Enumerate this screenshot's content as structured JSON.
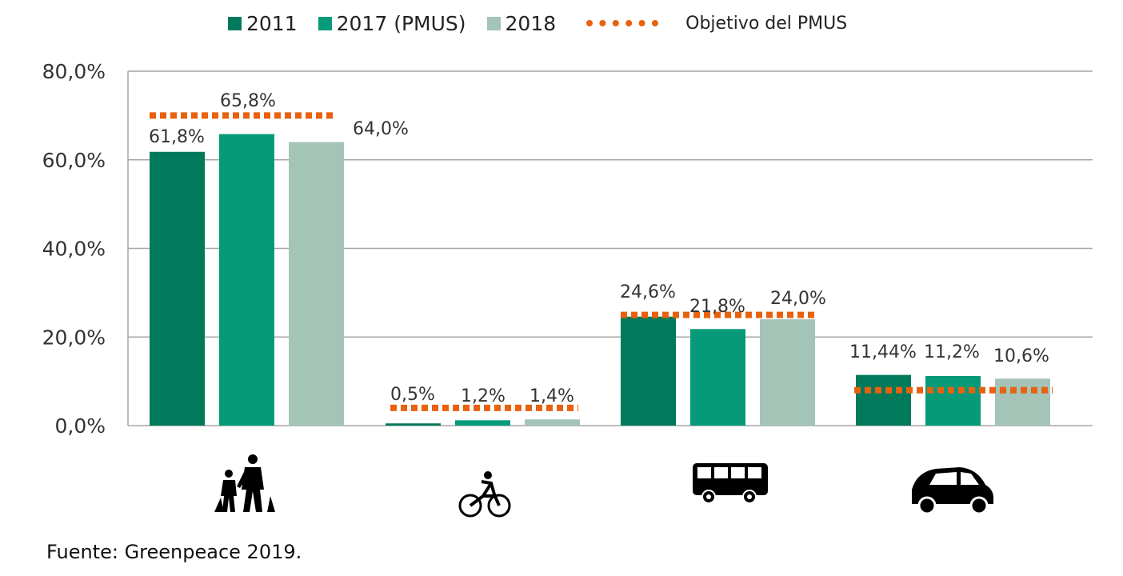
{
  "legend": {
    "s2011": "2011",
    "s2017": "2017 (PMUS)",
    "s2018": "2018",
    "target": "Objetivo del PMUS"
  },
  "colors": {
    "s2011": "#017a5c",
    "s2017": "#069a78",
    "s2018": "#a3c4b7",
    "target": "#e8610e",
    "grid": "#a6a6a6",
    "text": "#333333"
  },
  "source": "Fuente: Greenpeace 2019.",
  "chart_data": {
    "type": "bar",
    "categories": [
      "walking-icon",
      "bicycle-icon",
      "bus-icon",
      "car-icon"
    ],
    "series": [
      {
        "name": "2011",
        "values": [
          61.8,
          0.5,
          24.6,
          11.44
        ],
        "labels": [
          "61,8%",
          "0,5%",
          "24,6%",
          "11,44%"
        ]
      },
      {
        "name": "2017 (PMUS)",
        "values": [
          65.8,
          1.2,
          21.8,
          11.2
        ],
        "labels": [
          "65,8%",
          "1,2%",
          "21,8%",
          "11,2%"
        ]
      },
      {
        "name": "2018",
        "values": [
          64.0,
          1.4,
          24.0,
          10.6
        ],
        "labels": [
          "64,0%",
          "1,4%",
          "24,0%",
          "10,6%"
        ]
      }
    ],
    "targets": {
      "name": "Objetivo del PMUS",
      "values": [
        70.0,
        4.0,
        25.0,
        8.0
      ]
    },
    "ylim": [
      0,
      80
    ],
    "yticks": [
      0,
      20,
      40,
      60,
      80
    ],
    "ytick_labels": [
      "0,0%",
      "20,0%",
      "40,0%",
      "60,0%",
      "80,0%"
    ],
    "grid": true,
    "legend_position": "top"
  }
}
